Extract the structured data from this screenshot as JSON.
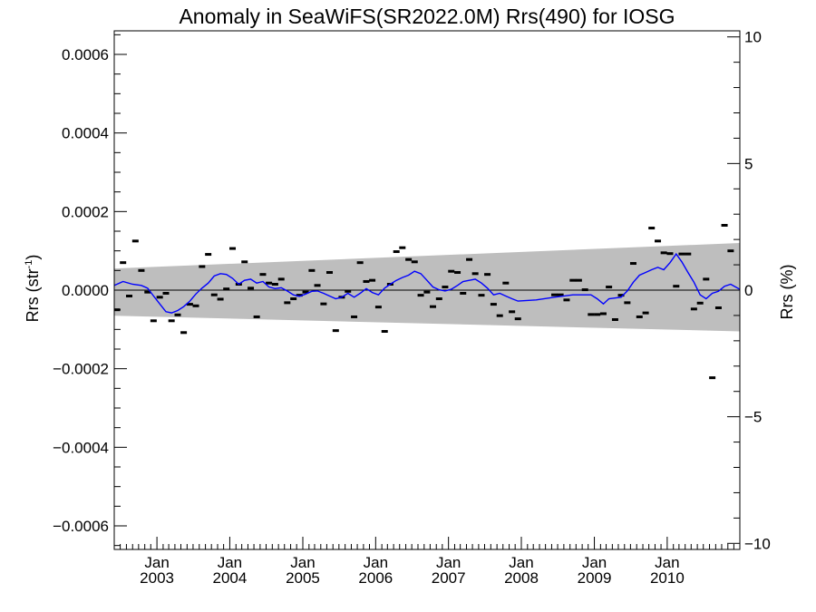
{
  "chart_data": {
    "type": "scatter",
    "title": "Anomaly in SeaWiFS(SR2022.0M) Rrs(490) for IOSG",
    "ylabel_left_main": "Rrs (str",
    "ylabel_left_sup": "-1",
    "ylabel_left_close": ")",
    "ylabel_right": "Rrs (%)",
    "ylim_left": [
      -0.00066,
      0.00066
    ],
    "ylim_right": [
      -10.24,
      10.24
    ],
    "yticks_left": [
      -0.0006,
      -0.0004,
      -0.0002,
      0.0,
      0.0002,
      0.0004,
      0.0006
    ],
    "yticks_left_labels": [
      "−0.0006",
      "−0.0004",
      "−0.0002",
      "0.0000",
      "0.0002",
      "0.0004",
      "0.0006"
    ],
    "yticks_right": [
      -10,
      -5,
      0,
      5,
      10
    ],
    "yticks_right_labels": [
      "−10",
      "−5",
      "0",
      "5",
      "10"
    ],
    "x_range": [
      "2002-06-01",
      "2010-12-31"
    ],
    "xticks": [
      "2003-01-01",
      "2004-01-01",
      "2005-01-01",
      "2006-01-01",
      "2007-01-01",
      "2008-01-01",
      "2009-01-01",
      "2010-01-01"
    ],
    "xtick_month_label": "Jan",
    "xtick_year_labels": [
      "2003",
      "2004",
      "2005",
      "2006",
      "2007",
      "2008",
      "2009",
      "2010"
    ],
    "uncertainty_band": {
      "dates": [
        "2002-06-01",
        "2010-12-31"
      ],
      "upper": [
        5.5e-05,
        0.00012
      ],
      "lower": [
        -6.5e-05,
        -0.000105
      ],
      "color": "#bebebe"
    },
    "series": [
      {
        "kind": "monthly_anomaly",
        "color": "#000000",
        "points": [
          [
            "2002-06-15",
            -5e-05
          ],
          [
            "2002-07-15",
            7e-05
          ],
          [
            "2002-08-15",
            -1.5e-05
          ],
          [
            "2002-09-15",
            0.000125
          ],
          [
            "2002-10-15",
            5e-05
          ],
          [
            "2002-11-15",
            -5e-06
          ],
          [
            "2002-12-15",
            -7.8e-05
          ],
          [
            "2003-01-15",
            -1.8e-05
          ],
          [
            "2003-02-15",
            -8e-06
          ],
          [
            "2003-03-15",
            -7.8e-05
          ],
          [
            "2003-04-15",
            -6.3e-05
          ],
          [
            "2003-05-15",
            -0.000108
          ],
          [
            "2003-06-15",
            -3.6e-05
          ],
          [
            "2003-07-15",
            -4e-05
          ],
          [
            "2003-08-15",
            6e-05
          ],
          [
            "2003-09-15",
            9.1e-05
          ],
          [
            "2003-10-15",
            -1.2e-05
          ],
          [
            "2003-11-15",
            -2.3e-05
          ],
          [
            "2003-12-15",
            3e-06
          ],
          [
            "2004-01-15",
            0.000106
          ],
          [
            "2004-02-15",
            1.5e-05
          ],
          [
            "2004-03-15",
            7.2e-05
          ],
          [
            "2004-04-15",
            5e-06
          ],
          [
            "2004-05-15",
            -6.8e-05
          ],
          [
            "2004-06-15",
            4e-05
          ],
          [
            "2004-07-15",
            1.8e-05
          ],
          [
            "2004-08-15",
            1.5e-05
          ],
          [
            "2004-09-15",
            2.8e-05
          ],
          [
            "2004-10-15",
            -3.2e-05
          ],
          [
            "2004-11-15",
            -2.2e-05
          ],
          [
            "2004-12-15",
            -1.3e-05
          ],
          [
            "2005-01-15",
            -5e-06
          ],
          [
            "2005-02-15",
            5e-05
          ],
          [
            "2005-03-15",
            1.2e-05
          ],
          [
            "2005-04-15",
            -3.5e-05
          ],
          [
            "2005-05-15",
            4.5e-05
          ],
          [
            "2005-06-15",
            -0.000103
          ],
          [
            "2005-07-15",
            -1.8e-05
          ],
          [
            "2005-08-15",
            -3e-06
          ],
          [
            "2005-09-15",
            -6.8e-05
          ],
          [
            "2005-10-15",
            7e-05
          ],
          [
            "2005-11-15",
            2.2e-05
          ],
          [
            "2005-12-15",
            2.5e-05
          ],
          [
            "2006-01-15",
            -4.3e-05
          ],
          [
            "2006-02-15",
            -0.000105
          ],
          [
            "2006-03-15",
            1.5e-05
          ],
          [
            "2006-04-15",
            9.8e-05
          ],
          [
            "2006-05-15",
            0.000108
          ],
          [
            "2006-06-15",
            7.8e-05
          ],
          [
            "2006-07-15",
            7.2e-05
          ],
          [
            "2006-08-15",
            -1.3e-05
          ],
          [
            "2006-09-15",
            -5e-06
          ],
          [
            "2006-10-15",
            -4.2e-05
          ],
          [
            "2006-11-15",
            -2.2e-05
          ],
          [
            "2006-12-15",
            8e-06
          ],
          [
            "2007-01-15",
            4.8e-05
          ],
          [
            "2007-02-15",
            4.5e-05
          ],
          [
            "2007-03-15",
            -8e-06
          ],
          [
            "2007-04-15",
            7.8e-05
          ],
          [
            "2007-05-15",
            4.2e-05
          ],
          [
            "2007-06-15",
            -1.3e-05
          ],
          [
            "2007-07-15",
            4e-05
          ],
          [
            "2007-08-15",
            -3.6e-05
          ],
          [
            "2007-09-15",
            -6.5e-05
          ],
          [
            "2007-10-15",
            1.8e-05
          ],
          [
            "2007-11-15",
            -5.5e-05
          ],
          [
            "2007-12-15",
            -7.3e-05
          ],
          [
            "2008-06-15",
            -1.2e-05
          ],
          [
            "2008-07-15",
            -1.2e-05
          ],
          [
            "2008-08-15",
            -2.5e-05
          ],
          [
            "2008-09-15",
            2.5e-05
          ],
          [
            "2008-10-15",
            2.5e-05
          ],
          [
            "2008-11-15",
            1e-06
          ],
          [
            "2008-12-15",
            -6.2e-05
          ],
          [
            "2009-01-15",
            -6.2e-05
          ],
          [
            "2009-02-15",
            -6e-05
          ],
          [
            "2009-03-15",
            8e-06
          ],
          [
            "2009-04-15",
            -7.5e-05
          ],
          [
            "2009-05-15",
            -1.3e-05
          ],
          [
            "2009-06-15",
            -3.2e-05
          ],
          [
            "2009-07-15",
            6.8e-05
          ],
          [
            "2009-08-15",
            -6.8e-05
          ],
          [
            "2009-09-15",
            -5.8e-05
          ],
          [
            "2009-10-15",
            0.000158
          ],
          [
            "2009-11-15",
            0.000125
          ],
          [
            "2009-12-15",
            9.5e-05
          ],
          [
            "2010-01-15",
            9.3e-05
          ],
          [
            "2010-02-15",
            1e-05
          ],
          [
            "2010-03-15",
            9.2e-05
          ],
          [
            "2010-04-15",
            9.2e-05
          ],
          [
            "2010-05-15",
            -4.8e-05
          ],
          [
            "2010-06-15",
            -3.3e-05
          ],
          [
            "2010-07-15",
            2.8e-05
          ],
          [
            "2010-08-15",
            -0.000223
          ],
          [
            "2010-09-15",
            -4.5e-05
          ],
          [
            "2010-10-15",
            0.000165
          ],
          [
            "2010-11-15",
            0.0001
          ]
        ]
      },
      {
        "kind": "running_mean",
        "color": "#0000ff",
        "points": [
          [
            "2002-06-01",
            1.2e-05
          ],
          [
            "2002-07-15",
            2.2e-05
          ],
          [
            "2002-09-01",
            1.5e-05
          ],
          [
            "2002-10-15",
            1.2e-05
          ],
          [
            "2002-11-15",
            5e-06
          ],
          [
            "2002-12-15",
            -1.5e-05
          ],
          [
            "2003-01-15",
            -3.5e-05
          ],
          [
            "2003-02-15",
            -5.5e-05
          ],
          [
            "2003-03-15",
            -5.8e-05
          ],
          [
            "2003-04-15",
            -5.2e-05
          ],
          [
            "2003-05-15",
            -4.2e-05
          ],
          [
            "2003-06-15",
            -2.8e-05
          ],
          [
            "2003-07-15",
            -1e-05
          ],
          [
            "2003-08-15",
            5e-06
          ],
          [
            "2003-09-15",
            1.8e-05
          ],
          [
            "2003-10-15",
            3.6e-05
          ],
          [
            "2003-11-15",
            4.2e-05
          ],
          [
            "2003-12-15",
            4e-05
          ],
          [
            "2004-01-15",
            3e-05
          ],
          [
            "2004-02-15",
            1.5e-05
          ],
          [
            "2004-03-15",
            2.5e-05
          ],
          [
            "2004-04-15",
            2.8e-05
          ],
          [
            "2004-05-15",
            1.8e-05
          ],
          [
            "2004-06-15",
            2.2e-05
          ],
          [
            "2004-07-15",
            8e-06
          ],
          [
            "2004-08-15",
            4e-06
          ],
          [
            "2004-09-15",
            6e-06
          ],
          [
            "2004-10-15",
            -2e-06
          ],
          [
            "2004-11-15",
            -1.2e-05
          ],
          [
            "2004-12-15",
            -1.6e-05
          ],
          [
            "2005-01-15",
            -1e-05
          ],
          [
            "2005-02-15",
            -3e-06
          ],
          [
            "2005-03-15",
            -2e-06
          ],
          [
            "2005-04-15",
            -8e-06
          ],
          [
            "2005-05-15",
            -1.5e-05
          ],
          [
            "2005-06-15",
            -2.2e-05
          ],
          [
            "2005-07-15",
            -1.8e-05
          ],
          [
            "2005-08-15",
            -8e-06
          ],
          [
            "2005-09-15",
            -1.8e-05
          ],
          [
            "2005-10-15",
            -8e-06
          ],
          [
            "2005-11-15",
            4e-06
          ],
          [
            "2005-12-15",
            -6e-06
          ],
          [
            "2006-01-15",
            -1.2e-05
          ],
          [
            "2006-02-15",
            5e-06
          ],
          [
            "2006-03-15",
            1.5e-05
          ],
          [
            "2006-04-15",
            2.5e-05
          ],
          [
            "2006-05-15",
            3.2e-05
          ],
          [
            "2006-06-15",
            3.8e-05
          ],
          [
            "2006-07-15",
            4.8e-05
          ],
          [
            "2006-08-15",
            4.2e-05
          ],
          [
            "2006-09-15",
            2.5e-05
          ],
          [
            "2006-10-15",
            8e-06
          ],
          [
            "2006-11-15",
            1e-06
          ],
          [
            "2006-12-15",
            -2e-06
          ],
          [
            "2007-01-15",
            2e-06
          ],
          [
            "2007-02-15",
            1.2e-05
          ],
          [
            "2007-03-15",
            2.2e-05
          ],
          [
            "2007-04-15",
            2.5e-05
          ],
          [
            "2007-05-15",
            2.8e-05
          ],
          [
            "2007-06-15",
            1.8e-05
          ],
          [
            "2007-07-15",
            5e-06
          ],
          [
            "2007-08-15",
            -1.2e-05
          ],
          [
            "2007-09-15",
            -8e-06
          ],
          [
            "2007-10-15",
            -1.5e-05
          ],
          [
            "2007-11-15",
            -2.2e-05
          ],
          [
            "2007-12-15",
            -2.8e-05
          ],
          [
            "2008-03-15",
            -2.5e-05
          ],
          [
            "2008-06-15",
            -1.8e-05
          ],
          [
            "2008-09-15",
            -1.2e-05
          ],
          [
            "2008-12-15",
            -1.2e-05
          ],
          [
            "2009-01-15",
            -2.2e-05
          ],
          [
            "2009-02-15",
            -3.5e-05
          ],
          [
            "2009-03-15",
            -2.2e-05
          ],
          [
            "2009-05-15",
            -1.8e-05
          ],
          [
            "2009-06-15",
            -2e-06
          ],
          [
            "2009-07-15",
            2e-05
          ],
          [
            "2009-08-15",
            3.8e-05
          ],
          [
            "2009-09-15",
            4.5e-05
          ],
          [
            "2009-10-15",
            5.2e-05
          ],
          [
            "2009-11-15",
            5.8e-05
          ],
          [
            "2009-12-15",
            5.2e-05
          ],
          [
            "2010-01-15",
            7e-05
          ],
          [
            "2010-02-15",
            9.2e-05
          ],
          [
            "2010-03-15",
            7.2e-05
          ],
          [
            "2010-04-15",
            4.5e-05
          ],
          [
            "2010-05-15",
            2e-05
          ],
          [
            "2010-06-15",
            -1.2e-05
          ],
          [
            "2010-07-15",
            -2.2e-05
          ],
          [
            "2010-08-15",
            -8e-06
          ],
          [
            "2010-09-15",
            -3e-06
          ],
          [
            "2010-10-15",
            1e-05
          ],
          [
            "2010-11-15",
            1.5e-05
          ],
          [
            "2010-12-31",
            2e-06
          ]
        ]
      }
    ],
    "zero_line": 0.0,
    "grid": false,
    "legend": "none"
  }
}
